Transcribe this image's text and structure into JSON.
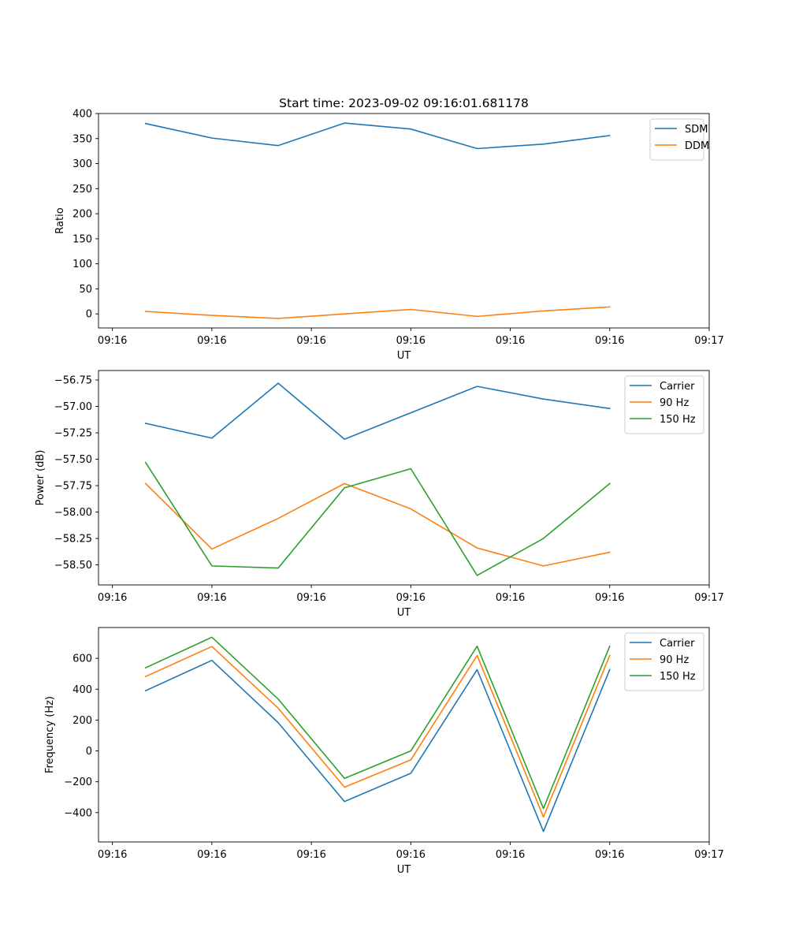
{
  "figure": {
    "title": "Start time: 2023-09-02 09:16:01.681178"
  },
  "chart_data": [
    {
      "type": "line",
      "xlabel": "UT",
      "ylabel": "Ratio",
      "x": [
        1,
        2,
        3,
        4,
        5,
        6,
        7,
        8
      ],
      "xlim": [
        0.29,
        9.5
      ],
      "xticks": [
        0.5,
        2,
        3.5,
        5,
        6.5,
        8,
        9.5
      ],
      "xtick_labels": [
        "09:16",
        "09:16",
        "09:16",
        "09:16",
        "09:16",
        "09:16",
        "09:17"
      ],
      "ylim": [
        -28,
        400
      ],
      "yticks": [
        0,
        50,
        100,
        150,
        200,
        250,
        300,
        350,
        400
      ],
      "ytick_labels": [
        "0",
        "50",
        "100",
        "150",
        "200",
        "250",
        "300",
        "350",
        "400"
      ],
      "legend_position": "top-right",
      "series": [
        {
          "name": "SDM",
          "color": "#1f77b4",
          "values": [
            380,
            351,
            336,
            381,
            369,
            330,
            339,
            356
          ]
        },
        {
          "name": "DDM",
          "color": "#ff7f0e",
          "values": [
            5,
            -3,
            -9,
            0,
            9,
            -5,
            6,
            14
          ]
        }
      ]
    },
    {
      "type": "line",
      "xlabel": "UT",
      "ylabel": "Power (dB)",
      "x": [
        1,
        2,
        3,
        4,
        5,
        6,
        7,
        8
      ],
      "xlim": [
        0.29,
        9.5
      ],
      "xticks": [
        0.5,
        2,
        3.5,
        5,
        6.5,
        8,
        9.5
      ],
      "xtick_labels": [
        "09:16",
        "09:16",
        "09:16",
        "09:16",
        "09:16",
        "09:16",
        "09:17"
      ],
      "ylim": [
        -58.69,
        -56.66
      ],
      "yticks": [
        -56.75,
        -57.0,
        -57.25,
        -57.5,
        -57.75,
        -58.0,
        -58.25,
        -58.5
      ],
      "ytick_labels": [
        "−56.75",
        "−57.00",
        "−57.25",
        "−57.50",
        "−57.75",
        "−58.00",
        "−58.25",
        "−58.50"
      ],
      "legend_position": "top-right",
      "series": [
        {
          "name": "Carrier",
          "color": "#1f77b4",
          "values": [
            -57.16,
            -57.3,
            -56.78,
            -57.31,
            -57.06,
            -56.81,
            -56.93,
            -57.02
          ]
        },
        {
          "name": "90 Hz",
          "color": "#ff7f0e",
          "values": [
            -57.73,
            -58.35,
            -58.06,
            -57.73,
            -57.97,
            -58.34,
            -58.51,
            -58.38
          ]
        },
        {
          "name": "150 Hz",
          "color": "#2ca02c",
          "values": [
            -57.53,
            -58.51,
            -58.53,
            -57.77,
            -57.59,
            -58.6,
            -58.25,
            -57.73
          ]
        }
      ]
    },
    {
      "type": "line",
      "xlabel": "UT",
      "ylabel": "Frequency (Hz)",
      "x": [
        1,
        2,
        3,
        4,
        5,
        6,
        7,
        8
      ],
      "xlim": [
        0.29,
        9.5
      ],
      "xticks": [
        0.5,
        2,
        3.5,
        5,
        6.5,
        8,
        9.5
      ],
      "xtick_labels": [
        "09:16",
        "09:16",
        "09:16",
        "09:16",
        "09:16",
        "09:16",
        "09:17"
      ],
      "ylim": [
        -590,
        800
      ],
      "yticks": [
        -400,
        -200,
        0,
        200,
        400,
        600
      ],
      "ytick_labels": [
        "−400",
        "−200",
        "0",
        "200",
        "400",
        "600"
      ],
      "legend_position": "top-right",
      "series": [
        {
          "name": "Carrier",
          "color": "#1f77b4",
          "values": [
            390,
            587,
            183,
            -328,
            -145,
            527,
            -522,
            527
          ]
        },
        {
          "name": "90 Hz",
          "color": "#ff7f0e",
          "values": [
            482,
            677,
            277,
            -235,
            -58,
            619,
            -428,
            619
          ]
        },
        {
          "name": "150 Hz",
          "color": "#2ca02c",
          "values": [
            539,
            737,
            336,
            -178,
            0,
            679,
            -373,
            679
          ]
        }
      ]
    }
  ]
}
